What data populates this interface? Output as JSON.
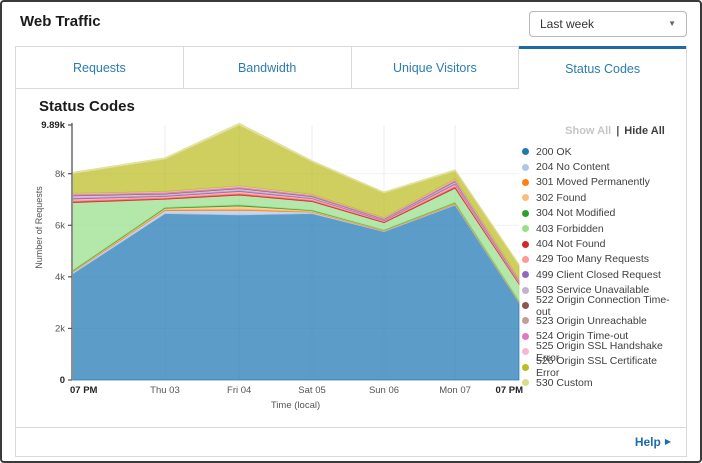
{
  "header": {
    "title": "Web Traffic",
    "range_select": {
      "value": "Last week"
    }
  },
  "tabs": [
    {
      "label": "Requests",
      "active": false
    },
    {
      "label": "Bandwidth",
      "active": false
    },
    {
      "label": "Unique Visitors",
      "active": false
    },
    {
      "label": "Status Codes",
      "active": true
    }
  ],
  "panel": {
    "title": "Status Codes"
  },
  "legend": {
    "show_all": "Show All",
    "separator": "|",
    "hide_all": "Hide All"
  },
  "footer": {
    "help_label": "Help"
  },
  "chart_data": {
    "type": "area",
    "stacked": true,
    "title": "Status Codes",
    "xlabel": "Time (local)",
    "ylabel": "Number of Requests",
    "value_unit": "thousands of requests",
    "ylim": [
      0,
      9.89
    ],
    "grid": true,
    "legend_position": "right",
    "x_ticks": [
      {
        "label": "07 PM",
        "pos": 0,
        "bold": true
      },
      {
        "label": "Thu 03",
        "pos": 0.208,
        "bold": false
      },
      {
        "label": "Fri 04",
        "pos": 0.374,
        "bold": false
      },
      {
        "label": "Sat 05",
        "pos": 0.537,
        "bold": false
      },
      {
        "label": "Sun 06",
        "pos": 0.698,
        "bold": false
      },
      {
        "label": "Mon 07",
        "pos": 0.857,
        "bold": false
      },
      {
        "label": "07 PM",
        "pos": 1,
        "bold": true
      }
    ],
    "y_ticks": [
      {
        "label": "0",
        "value": 0,
        "bold": true
      },
      {
        "label": "2k",
        "value": 2,
        "bold": false
      },
      {
        "label": "4k",
        "value": 4,
        "bold": false
      },
      {
        "label": "6k",
        "value": 6,
        "bold": false
      },
      {
        "label": "8k",
        "value": 8,
        "bold": false
      },
      {
        "label": "9.89k",
        "value": 9.89,
        "bold": true
      }
    ],
    "series": [
      {
        "name": "200 OK",
        "color": "#1f77b4",
        "values": [
          4.1,
          6.45,
          6.4,
          6.45,
          5.75,
          6.78,
          3.0
        ]
      },
      {
        "name": "204 No Content",
        "color": "#aec7e8",
        "values": [
          0.06,
          0.12,
          0.18,
          0.06,
          0.03,
          0.04,
          0.03
        ]
      },
      {
        "name": "301 Moved Permanently",
        "color": "#ff7f0e",
        "values": [
          0.02,
          0.03,
          0.05,
          0.02,
          0.01,
          0.02,
          0.01
        ]
      },
      {
        "name": "302 Found",
        "color": "#ffbb78",
        "values": [
          0.03,
          0.06,
          0.12,
          0.04,
          0.02,
          0.03,
          0.02
        ]
      },
      {
        "name": "304 Not Modified",
        "color": "#2ca02c",
        "values": [
          0.02,
          0.03,
          0.04,
          0.02,
          0.01,
          0.02,
          0.01
        ]
      },
      {
        "name": "403 Forbidden",
        "color": "#98df8a",
        "values": [
          2.65,
          0.32,
          0.38,
          0.33,
          0.28,
          0.55,
          0.65
        ]
      },
      {
        "name": "404 Not Found",
        "color": "#d62728",
        "values": [
          0.06,
          0.05,
          0.06,
          0.05,
          0.04,
          0.07,
          0.04
        ]
      },
      {
        "name": "429 Too Many Requests",
        "color": "#ff9896",
        "values": [
          0.08,
          0.06,
          0.08,
          0.06,
          0.04,
          0.08,
          0.04
        ]
      },
      {
        "name": "499 Client Closed Request",
        "color": "#9467bd",
        "values": [
          0.04,
          0.03,
          0.04,
          0.03,
          0.02,
          0.04,
          0.02
        ]
      },
      {
        "name": "503 Service Unavailable",
        "color": "#c5b0d5",
        "values": [
          0.08,
          0.06,
          0.07,
          0.05,
          0.03,
          0.06,
          0.03
        ]
      },
      {
        "name": "522 Origin Connection Time-out",
        "color": "#8c564b",
        "values": [
          0.02,
          0.02,
          0.02,
          0.02,
          0.01,
          0.02,
          0.01
        ]
      },
      {
        "name": "523 Origin Unreachable",
        "color": "#c49c94",
        "values": [
          0.02,
          0.02,
          0.02,
          0.02,
          0.01,
          0.02,
          0.01
        ]
      },
      {
        "name": "524 Origin Time-out",
        "color": "#e377c2",
        "values": [
          0.03,
          0.03,
          0.03,
          0.02,
          0.02,
          0.03,
          0.02
        ]
      },
      {
        "name": "525 Origin SSL Handshake Error",
        "color": "#f7b6d2",
        "values": [
          0.03,
          0.03,
          0.04,
          0.03,
          0.02,
          0.04,
          0.03
        ]
      },
      {
        "name": "526 Origin SSL Certificate Error",
        "color": "#bcbd22",
        "values": [
          0.75,
          1.25,
          2.35,
          1.25,
          0.95,
          0.3,
          0.52
        ]
      },
      {
        "name": "530 Custom",
        "color": "#dbdb8d",
        "values": [
          0.06,
          0.06,
          0.08,
          0.06,
          0.05,
          0.06,
          0.05
        ]
      }
    ]
  }
}
